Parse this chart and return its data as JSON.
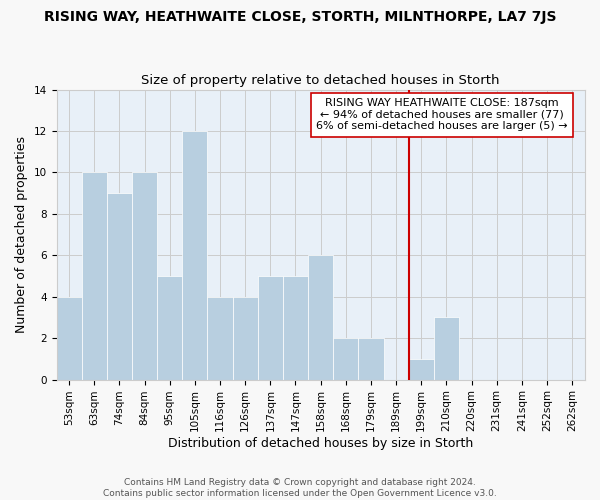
{
  "title": "RISING WAY, HEATHWAITE CLOSE, STORTH, MILNTHORPE, LA7 7JS",
  "subtitle": "Size of property relative to detached houses in Storth",
  "xlabel": "Distribution of detached houses by size in Storth",
  "ylabel": "Number of detached properties",
  "bar_labels": [
    "53sqm",
    "63sqm",
    "74sqm",
    "84sqm",
    "95sqm",
    "105sqm",
    "116sqm",
    "126sqm",
    "137sqm",
    "147sqm",
    "158sqm",
    "168sqm",
    "179sqm",
    "189sqm",
    "199sqm",
    "210sqm",
    "220sqm",
    "231sqm",
    "241sqm",
    "252sqm",
    "262sqm"
  ],
  "bar_values": [
    4,
    10,
    9,
    10,
    5,
    12,
    4,
    4,
    5,
    5,
    6,
    2,
    2,
    0,
    1,
    3,
    0,
    0,
    0,
    0,
    0
  ],
  "bar_color": "#b8cfe0",
  "bar_edge_color": "#b8cfe0",
  "vline_color": "#cc0000",
  "vline_pos": 13.5,
  "annotation_line1": "RISING WAY HEATHWAITE CLOSE: 187sqm",
  "annotation_line2": "← 94% of detached houses are smaller (77)",
  "annotation_line3": "6% of semi-detached houses are larger (5) →",
  "ylim": [
    0,
    14
  ],
  "yticks": [
    0,
    2,
    4,
    6,
    8,
    10,
    12,
    14
  ],
  "footer1": "Contains HM Land Registry data © Crown copyright and database right 2024.",
  "footer2": "Contains public sector information licensed under the Open Government Licence v3.0.",
  "title_fontsize": 10,
  "subtitle_fontsize": 9.5,
  "axis_label_fontsize": 9,
  "tick_fontsize": 7.5,
  "annotation_fontsize": 8,
  "footer_fontsize": 6.5,
  "bg_color": "#e8f0f8",
  "fig_bg_color": "#f8f8f8"
}
